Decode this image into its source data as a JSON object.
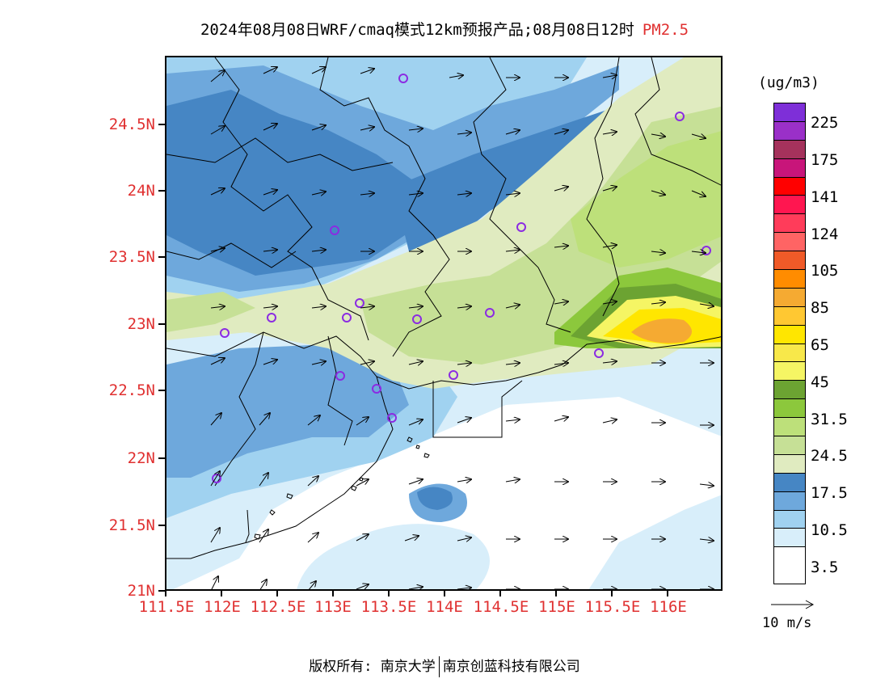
{
  "title": {
    "main": "2024年08月08日WRF/cmaq模式12km预报产品;08月08日12时",
    "species": "PM2.5"
  },
  "lat_labels": [
    "24.5N",
    "24N",
    "23.5N",
    "23N",
    "22.5N",
    "22N",
    "21.5N",
    "21N"
  ],
  "lon_labels": [
    "111.5E",
    "112E",
    "112.5E",
    "113E",
    "113.5E",
    "114E",
    "114.5E",
    "115E",
    "115.5E",
    "116E"
  ],
  "colorbar": {
    "unit": "(ug/m3)",
    "labels": [
      "225",
      "175",
      "141",
      "124",
      "105",
      "85",
      "65",
      "45",
      "31.5",
      "24.5",
      "17.5",
      "10.5",
      "3.5"
    ],
    "colors_top_to_bottom": [
      "#7e2fd8",
      "#9a30c8",
      "#a5325c",
      "#c8157a",
      "#ff0000",
      "#ff1650",
      "#ff3c5a",
      "#ff6464",
      "#f05a28",
      "#ff8c00",
      "#f5aa32",
      "#ffc832",
      "#ffe600",
      "#f8e84a",
      "#f5f564",
      "#6ca332",
      "#8cc83c",
      "#bde07a",
      "#c6e096",
      "#e0ebc0",
      "#4686c4",
      "#6ea8dc",
      "#a0d2f0",
      "#d8eefa",
      "#ffffff"
    ]
  },
  "wind_reference": {
    "label": "10 m/s"
  },
  "footer": {
    "owner": "版权所有: 南京大学",
    "partner": "南京创蓝科技有限公司"
  },
  "station_marker_color": "#8b2be2"
}
